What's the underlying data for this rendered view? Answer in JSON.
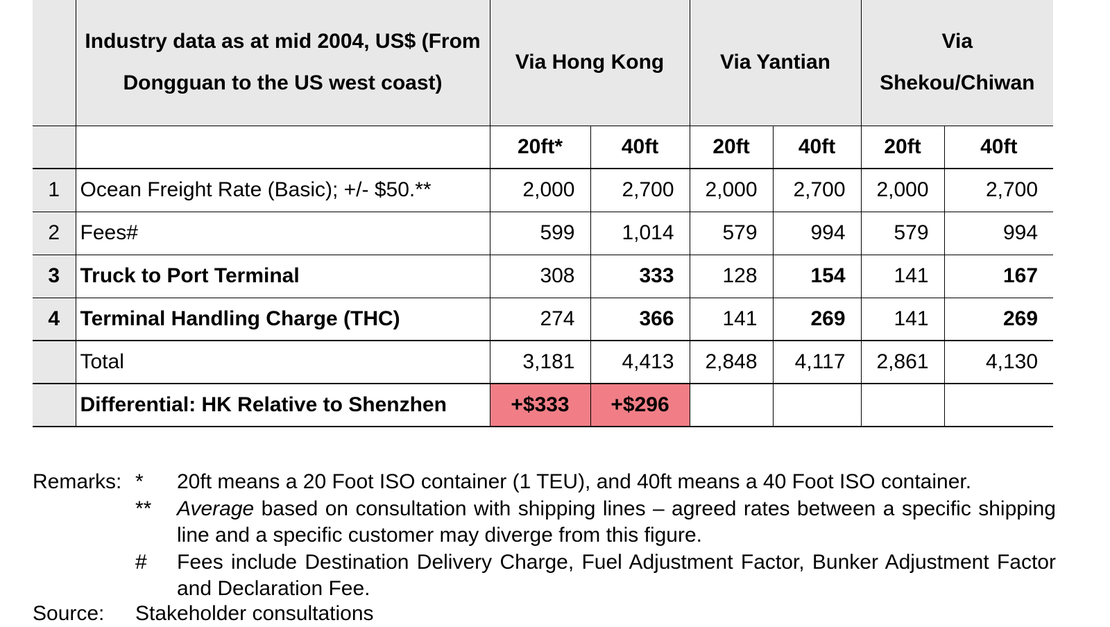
{
  "table": {
    "header_title": "Industry data as at mid 2004, US$ (From Dongguan to the US west coast)",
    "routes": [
      {
        "label": "Via Hong Kong"
      },
      {
        "label": "Via Yantian"
      },
      {
        "label": "Via Shekou/Chiwan"
      }
    ],
    "sizes": [
      "20ft*",
      "40ft",
      "20ft",
      "40ft",
      "20ft",
      "40ft"
    ],
    "rows": [
      {
        "index": "1",
        "label": "Ocean Freight Rate (Basic); +/- $50.**",
        "values": [
          "2,000",
          "2,700",
          "2,000",
          "2,700",
          "2,000",
          "2,700"
        ]
      },
      {
        "index": "2",
        "label": "Fees#",
        "values": [
          "599",
          "1,014",
          "579",
          "994",
          "579",
          "994"
        ]
      },
      {
        "index": "3",
        "label": "Truck to Port Terminal",
        "values": [
          "308",
          "333",
          "128",
          "154",
          "141",
          "167"
        ]
      },
      {
        "index": "4",
        "label": "Terminal Handling Charge (THC)",
        "values": [
          "274",
          "366",
          "141",
          "269",
          "141",
          "269"
        ]
      }
    ],
    "total": {
      "label": "Total",
      "values": [
        "3,181",
        "4,413",
        "2,848",
        "4,117",
        "2,861",
        "4,130"
      ]
    },
    "differential": {
      "label": "Differential: HK Relative to Shenzhen",
      "values": [
        "+$333",
        "+$296"
      ]
    },
    "highlight_color": "#f17e86",
    "header_bg": "#e8e8e8"
  },
  "remarks": {
    "label": "Remarks:",
    "items": [
      {
        "mark": "*",
        "text": "20ft means a 20 Foot ISO container (1 TEU), and 40ft means a 40 Foot ISO container."
      },
      {
        "mark": "**",
        "italic": "Average",
        "text": " based on consultation with shipping lines – agreed rates between a specific shipping line and a specific customer may diverge from this figure."
      },
      {
        "mark": "#",
        "text": "Fees include Destination Delivery Charge, Fuel Adjustment Factor, Bunker Adjustment Factor and Declaration Fee."
      }
    ]
  },
  "source": {
    "label": "Source:",
    "text": "Stakeholder consultations"
  }
}
